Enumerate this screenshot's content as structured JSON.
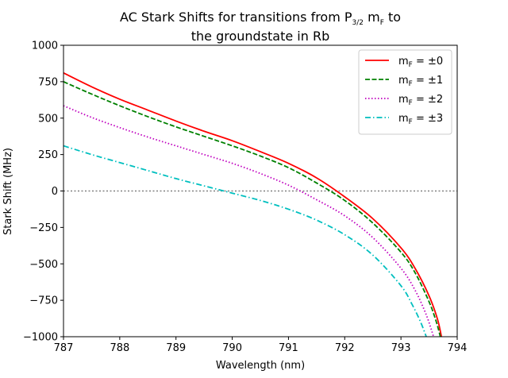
{
  "chart_data": {
    "type": "line",
    "title_line1_prefix": "AC Stark Shifts for transitions from P",
    "title_line1_sub": "3/2",
    "title_line1_mid": " m",
    "title_line1_sub2": "F",
    "title_line1_suffix": " to",
    "title_line2": "the groundstate in Rb",
    "xlabel": "Wavelength (nm)",
    "ylabel": "Stark Shift (MHz)",
    "xlim": [
      787,
      794
    ],
    "ylim": [
      -1000,
      1000
    ],
    "x_ticks": [
      787,
      788,
      789,
      790,
      791,
      792,
      793,
      794
    ],
    "x_tick_labels": [
      "787",
      "788",
      "789",
      "790",
      "791",
      "792",
      "793",
      "794"
    ],
    "y_ticks": [
      -1000,
      -750,
      -500,
      -250,
      0,
      250,
      500,
      750,
      1000
    ],
    "y_tick_labels": [
      "−1000",
      "−750",
      "−500",
      "−250",
      "0",
      "250",
      "500",
      "750",
      "1000"
    ],
    "zero_line": {
      "y": 0,
      "color": "#808080",
      "style": "dotted"
    },
    "legend_position": "top-right",
    "series": [
      {
        "legend_prefix": "m",
        "legend_sub": "F",
        "legend_suffix": " = ±0",
        "color": "#ff0000",
        "dash": "solid",
        "x": [
          787,
          787.5,
          788,
          788.5,
          789,
          789.5,
          790,
          790.5,
          791,
          791.5,
          792,
          792.5,
          793,
          793.25,
          793.5,
          793.65,
          793.72
        ],
        "y": [
          810,
          715,
          630,
          555,
          480,
          410,
          345,
          270,
          190,
          90,
          -40,
          -190,
          -390,
          -530,
          -720,
          -880,
          -1000
        ]
      },
      {
        "legend_prefix": "m",
        "legend_sub": "F",
        "legend_suffix": " = ±1",
        "color": "#008000",
        "dash": "dashed",
        "x": [
          787,
          787.5,
          788,
          788.5,
          789,
          789.5,
          790,
          790.5,
          791,
          791.5,
          792,
          792.5,
          793,
          793.25,
          793.5,
          793.63,
          793.7
        ],
        "y": [
          750,
          665,
          585,
          510,
          440,
          375,
          310,
          240,
          160,
          55,
          -65,
          -220,
          -420,
          -560,
          -760,
          -900,
          -1000
        ]
      },
      {
        "legend_prefix": "m",
        "legend_sub": "F",
        "legend_suffix": " = ±2",
        "color": "#bf00bf",
        "dash": "dotted",
        "x": [
          787,
          787.5,
          788,
          788.5,
          789,
          789.5,
          790,
          790.5,
          791,
          791.5,
          792,
          792.5,
          793,
          793.25,
          793.45,
          793.58
        ],
        "y": [
          585,
          505,
          435,
          370,
          310,
          250,
          190,
          120,
          40,
          -60,
          -170,
          -320,
          -530,
          -680,
          -850,
          -1000
        ]
      },
      {
        "legend_prefix": "m",
        "legend_sub": "F",
        "legend_suffix": " = ±3",
        "color": "#00bfbf",
        "dash": "dashdot",
        "x": [
          787,
          787.5,
          788,
          788.5,
          789,
          789.5,
          790,
          790.5,
          791,
          791.5,
          792,
          792.5,
          793,
          793.2,
          793.35,
          793.45
        ],
        "y": [
          310,
          250,
          195,
          140,
          85,
          35,
          -15,
          -65,
          -125,
          -200,
          -300,
          -440,
          -650,
          -780,
          -900,
          -1000
        ]
      }
    ]
  }
}
